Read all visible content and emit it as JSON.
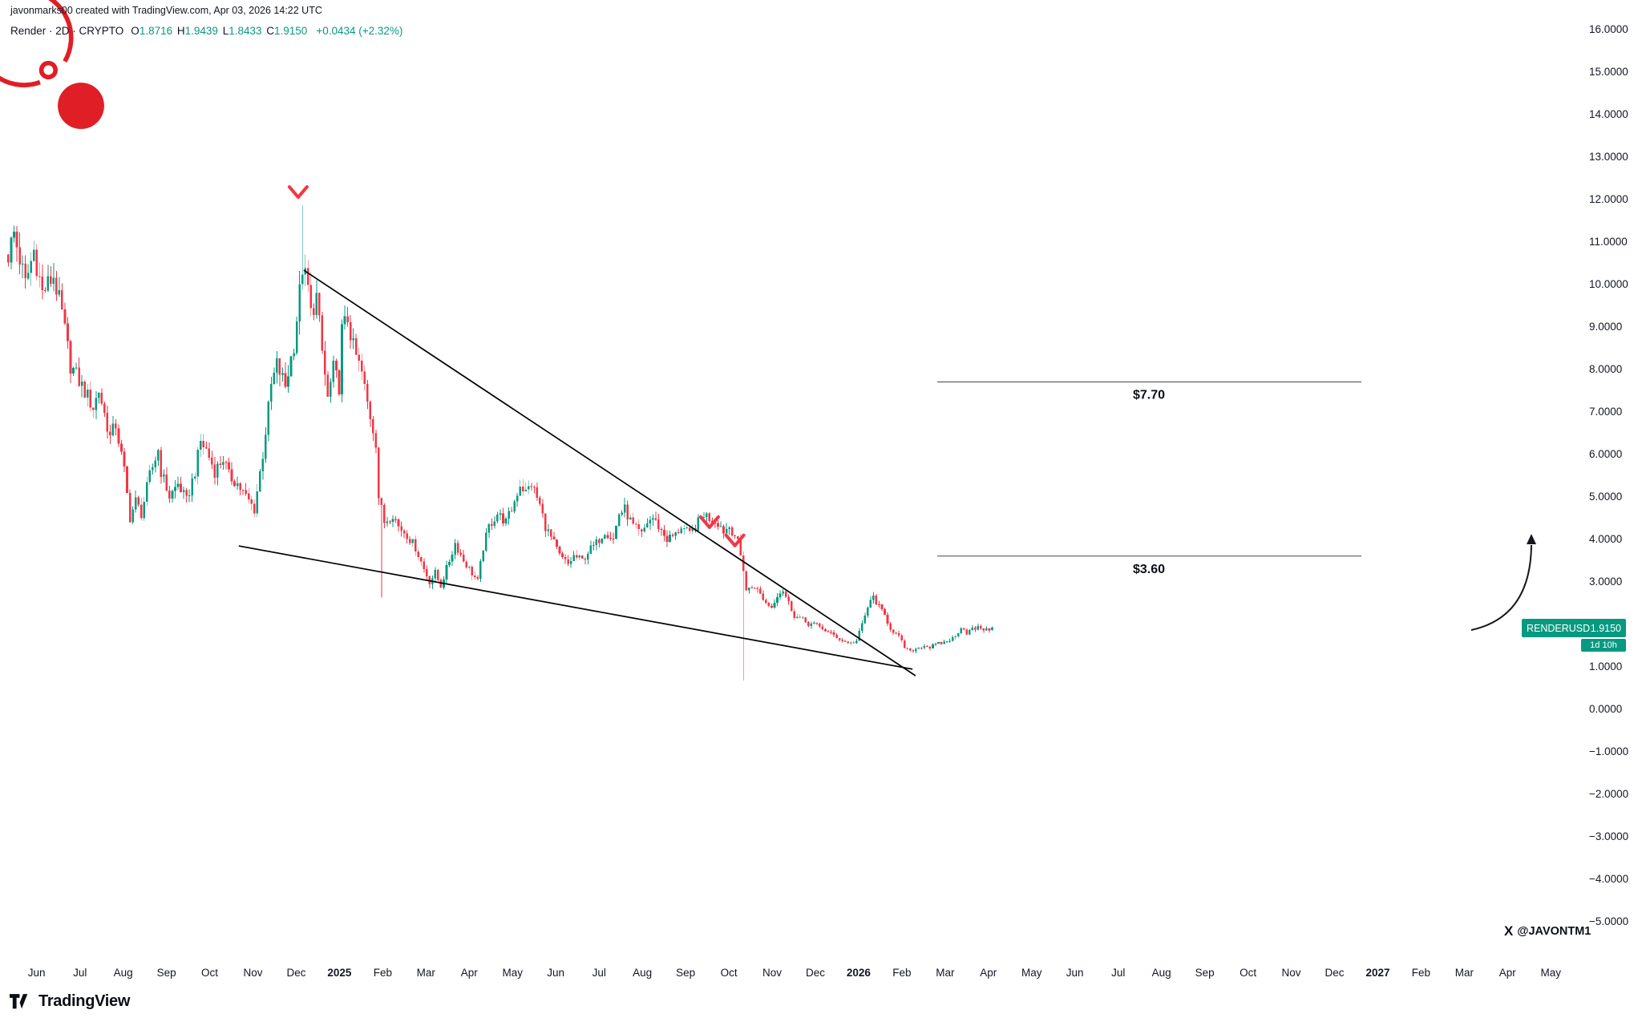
{
  "meta": {
    "attribution": "javonmarks00 created with TradingView.com, Apr 03, 2026 14:22 UTC",
    "watermark_handle": "@JAVONTM1",
    "footer_brand": "TradingView"
  },
  "symbol": {
    "title": "Render · 2D · CRYPTO",
    "ohlc": [
      [
        "O",
        "1.8716"
      ],
      [
        "H",
        "1.9439"
      ],
      [
        "L",
        "1.8433"
      ],
      [
        "C",
        "1.9150"
      ]
    ],
    "change": "+0.0434 (+2.32%)"
  },
  "price_scale": {
    "labels": [
      "16.0000",
      "15.0000",
      "14.0000",
      "13.0000",
      "12.0000",
      "11.0000",
      "10.0000",
      "9.0000",
      "8.0000",
      "7.0000",
      "6.0000",
      "5.0000",
      "4.0000",
      "3.0000",
      "2.0000",
      "1.0000",
      "0.0000",
      "−1.0000",
      "−2.0000",
      "−3.0000",
      "−4.0000",
      "−5.0000"
    ]
  },
  "time_scale": {
    "labels": [
      {
        "t": "Jun"
      },
      {
        "t": "Jul"
      },
      {
        "t": "Aug"
      },
      {
        "t": "Sep"
      },
      {
        "t": "Oct"
      },
      {
        "t": "Nov"
      },
      {
        "t": "Dec"
      },
      {
        "t": "2025",
        "year": true
      },
      {
        "t": "Feb"
      },
      {
        "t": "Mar"
      },
      {
        "t": "Apr"
      },
      {
        "t": "May"
      },
      {
        "t": "Jun"
      },
      {
        "t": "Jul"
      },
      {
        "t": "Aug"
      },
      {
        "t": "Sep"
      },
      {
        "t": "Oct"
      },
      {
        "t": "Nov"
      },
      {
        "t": "Dec"
      },
      {
        "t": "2026",
        "year": true
      },
      {
        "t": "Feb"
      },
      {
        "t": "Mar"
      },
      {
        "t": "Apr"
      },
      {
        "t": "May"
      },
      {
        "t": "Jun"
      },
      {
        "t": "Jul"
      },
      {
        "t": "Aug"
      },
      {
        "t": "Sep"
      },
      {
        "t": "Oct"
      },
      {
        "t": "Nov"
      },
      {
        "t": "Dec"
      },
      {
        "t": "2027",
        "year": true
      },
      {
        "t": "Feb"
      },
      {
        "t": "Mar"
      },
      {
        "t": "Apr"
      },
      {
        "t": "May"
      }
    ]
  },
  "price_label": {
    "symbol": "RENDERUSD",
    "price": "1.9150",
    "countdown": "1d 10h"
  },
  "chart_data": {
    "type": "candlestick",
    "title": "Render · 2D · CRYPTO (RENDERUSD)",
    "timeframe": "2D",
    "exchange": "CRYPTO",
    "x_range": [
      "Jun 2024",
      "May 2027"
    ],
    "ylim": [
      -5,
      16
    ],
    "grid": false,
    "ohlc_current": {
      "o": 1.8716,
      "h": 1.9439,
      "l": 1.8433,
      "c": 1.915,
      "change": 0.0434,
      "change_pct": 2.32
    },
    "candle_count": 349,
    "colors": {
      "up": "#089981",
      "down": "#f23645",
      "marker": "#f23645",
      "trendline": "#000000",
      "level": "#42464e"
    },
    "anchors": [
      [
        0,
        10.7
      ],
      [
        2,
        11.2
      ],
      [
        6,
        10.0
      ],
      [
        9,
        10.8
      ],
      [
        12,
        9.8
      ],
      [
        16,
        10.2
      ],
      [
        19,
        9.3
      ],
      [
        22,
        8.1
      ],
      [
        26,
        7.6
      ],
      [
        30,
        7.1
      ],
      [
        32,
        7.5
      ],
      [
        36,
        6.4
      ],
      [
        38,
        6.7
      ],
      [
        41,
        5.6
      ],
      [
        43,
        4.5
      ],
      [
        45,
        4.9
      ],
      [
        47,
        4.6
      ],
      [
        50,
        5.5
      ],
      [
        53,
        6.1
      ],
      [
        54,
        5.6
      ],
      [
        57,
        5.0
      ],
      [
        60,
        5.3
      ],
      [
        63,
        4.9
      ],
      [
        66,
        5.6
      ],
      [
        68,
        6.3
      ],
      [
        70,
        6.1
      ],
      [
        73,
        5.6
      ],
      [
        76,
        5.9
      ],
      [
        78,
        5.5
      ],
      [
        81,
        5.3
      ],
      [
        84,
        5.0
      ],
      [
        87,
        4.7
      ],
      [
        90,
        6.0
      ],
      [
        93,
        7.6
      ],
      [
        95,
        8.1
      ],
      [
        98,
        7.6
      ],
      [
        101,
        8.6
      ],
      [
        103,
        9.8
      ],
      [
        104,
        10.4
      ],
      [
        106,
        9.9
      ],
      [
        107,
        9.3
      ],
      [
        109,
        9.7
      ],
      [
        111,
        8.4
      ],
      [
        113,
        7.3
      ],
      [
        115,
        8.0
      ],
      [
        117,
        7.6
      ],
      [
        118,
        8.9
      ],
      [
        120,
        9.2
      ],
      [
        122,
        8.5
      ],
      [
        125,
        7.9
      ],
      [
        127,
        7.2
      ],
      [
        130,
        6.3
      ],
      [
        131,
        5.0
      ],
      [
        133,
        4.4
      ],
      [
        136,
        4.6
      ],
      [
        138,
        4.3
      ],
      [
        141,
        4.1
      ],
      [
        144,
        3.8
      ],
      [
        147,
        3.3
      ],
      [
        149,
        3.0
      ],
      [
        151,
        3.2
      ],
      [
        153,
        2.9
      ],
      [
        156,
        3.5
      ],
      [
        158,
        3.9
      ],
      [
        161,
        3.5
      ],
      [
        163,
        3.3
      ],
      [
        166,
        3.0
      ],
      [
        168,
        3.8
      ],
      [
        170,
        4.3
      ],
      [
        173,
        4.6
      ],
      [
        176,
        4.4
      ],
      [
        178,
        4.7
      ],
      [
        181,
        5.3
      ],
      [
        183,
        5.1
      ],
      [
        185,
        5.3
      ],
      [
        188,
        4.8
      ],
      [
        190,
        4.3
      ],
      [
        193,
        3.9
      ],
      [
        195,
        3.6
      ],
      [
        198,
        3.4
      ],
      [
        200,
        3.6
      ],
      [
        203,
        3.5
      ],
      [
        205,
        3.7
      ],
      [
        208,
        3.9
      ],
      [
        211,
        4.2
      ],
      [
        214,
        4.0
      ],
      [
        216,
        4.6
      ],
      [
        218,
        4.7
      ],
      [
        221,
        4.3
      ],
      [
        224,
        4.1
      ],
      [
        226,
        4.4
      ],
      [
        228,
        4.5
      ],
      [
        231,
        4.2
      ],
      [
        233,
        4.0
      ],
      [
        236,
        4.1
      ],
      [
        238,
        4.3
      ],
      [
        241,
        4.1
      ],
      [
        243,
        4.3
      ],
      [
        246,
        4.6
      ],
      [
        248,
        4.5
      ],
      [
        251,
        4.4
      ],
      [
        253,
        4.2
      ],
      [
        255,
        4.3
      ],
      [
        257,
        4.1
      ],
      [
        258,
        3.9
      ],
      [
        260,
        3.3
      ],
      [
        261,
        2.8
      ],
      [
        264,
        2.9
      ],
      [
        266,
        2.7
      ],
      [
        268,
        2.5
      ],
      [
        270,
        2.4
      ],
      [
        272,
        2.7
      ],
      [
        274,
        2.8
      ],
      [
        276,
        2.5
      ],
      [
        278,
        2.2
      ],
      [
        281,
        2.1
      ],
      [
        283,
        2.0
      ],
      [
        285,
        2.0
      ],
      [
        288,
        1.9
      ],
      [
        290,
        1.8
      ],
      [
        293,
        1.7
      ],
      [
        295,
        1.6
      ],
      [
        298,
        1.55
      ],
      [
        300,
        1.6
      ],
      [
        302,
        2.0
      ],
      [
        304,
        2.4
      ],
      [
        306,
        2.65
      ],
      [
        308,
        2.4
      ],
      [
        310,
        2.2
      ],
      [
        312,
        1.9
      ],
      [
        315,
        1.7
      ],
      [
        317,
        1.45
      ],
      [
        319,
        1.35
      ],
      [
        321,
        1.42
      ],
      [
        324,
        1.5
      ],
      [
        326,
        1.45
      ],
      [
        328,
        1.52
      ],
      [
        330,
        1.55
      ],
      [
        332,
        1.6
      ],
      [
        335,
        1.7
      ],
      [
        337,
        1.95
      ],
      [
        339,
        1.8
      ],
      [
        341,
        1.88
      ],
      [
        344,
        1.92
      ],
      [
        346,
        1.85
      ],
      [
        348,
        1.915
      ]
    ],
    "specials": [
      {
        "i": 104,
        "h": 11.86
      },
      {
        "i": 132,
        "l": 2.62
      },
      {
        "i": 260,
        "l": 0.67
      },
      {
        "i": 348,
        "o": 1.8716,
        "h": 1.9439,
        "l": 1.8433,
        "c": 1.915
      }
    ],
    "levels": [
      {
        "price": 7.7,
        "label": "$7.70"
      },
      {
        "price": 3.6,
        "label": "$3.60"
      }
    ],
    "levels_x_frac": [
      0.5708,
      0.8291
    ],
    "trendlines": [
      {
        "name": "wedge-upper",
        "from": [
          104.5,
          10.33
        ],
        "to": [
          320.9,
          0.785
        ]
      },
      {
        "name": "wedge-lower",
        "from": [
          81.5,
          3.84
        ],
        "to": [
          319.8,
          0.94
        ]
      }
    ],
    "markers": [
      {
        "i": 102.5,
        "p": 12.16
      },
      {
        "i": 248,
        "p": 4.39
      },
      {
        "i": 257,
        "p": 3.96
      }
    ],
    "arrow": {
      "tail": [
        1835,
        786
      ],
      "ctrl": [
        1909,
        770
      ],
      "tip": [
        1910,
        672
      ]
    }
  }
}
